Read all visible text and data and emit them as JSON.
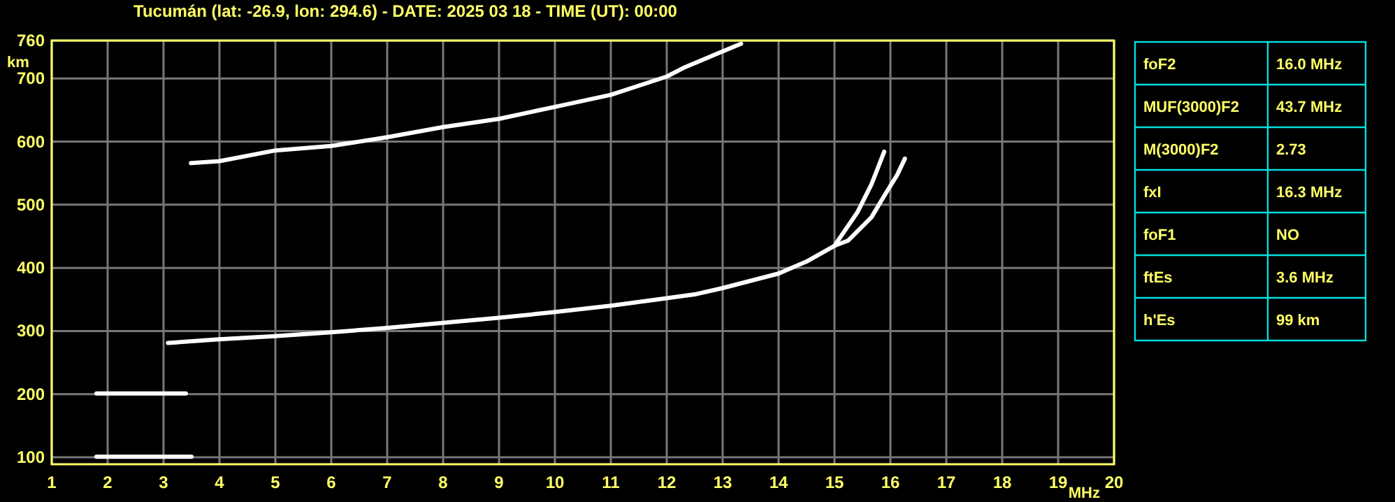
{
  "chart_data": [
    {
      "type": "line",
      "title": "Tucumán (lat: -26.9, lon: 294.6) - DATE: 2025 03 18 - TIME (UT): 00:00",
      "xlabel": "MHz",
      "ylabel": "km",
      "xlim": [
        1,
        20
      ],
      "ylim": [
        89,
        760
      ],
      "xticks": [
        1,
        2,
        3,
        4,
        5,
        6,
        7,
        8,
        9,
        10,
        11,
        12,
        13,
        14,
        15,
        16,
        17,
        18,
        19,
        20
      ],
      "yticks": [
        100,
        200,
        300,
        400,
        500,
        600,
        700,
        760
      ],
      "grid": true,
      "line_style": "solid",
      "marker": "none",
      "series": [
        {
          "color": "#ffffff",
          "x": [
            3.08,
            4,
            5,
            6,
            7,
            8,
            9,
            10,
            11,
            12,
            12.5,
            13,
            14,
            14.5,
            15,
            15.41,
            15.66,
            15.89
          ],
          "values": [
            281,
            287,
            292,
            298,
            305,
            313,
            321,
            330,
            340,
            352,
            358,
            368,
            391,
            410,
            435,
            488,
            532,
            584
          ]
        },
        {
          "color": "#ffffff",
          "x": [
            15,
            15.24,
            15.66,
            15.91,
            16.12,
            16.26
          ],
          "values": [
            435,
            443,
            480,
            517,
            547,
            573
          ]
        },
        {
          "color": "#ffffff",
          "x": [
            3.49,
            4,
            5,
            6,
            7,
            8,
            9,
            10,
            11,
            12,
            12.33,
            13.33
          ],
          "values": [
            566,
            569,
            586,
            593,
            607,
            623,
            636,
            655,
            674,
            703,
            718,
            755
          ]
        },
        {
          "color": "#ffffff",
          "x": [
            1.8,
            2.5,
            3.5
          ],
          "values": [
            101,
            101,
            101
          ]
        },
        {
          "color": "#ffffff",
          "x": [
            1.8,
            2.5,
            3.4
          ],
          "values": [
            201,
            201,
            201
          ]
        }
      ]
    },
    {
      "type": "other",
      "annotations": [
        "foF2",
        "16.0 MHz",
        "MUF(3000)F2",
        "43.7 MHz",
        "M(3000)F2",
        "2.73",
        "fxI",
        "16.3 MHz",
        "foF1",
        "NO",
        "ftEs",
        "3.6 MHz",
        "h'Es",
        "99 km"
      ]
    }
  ]
}
